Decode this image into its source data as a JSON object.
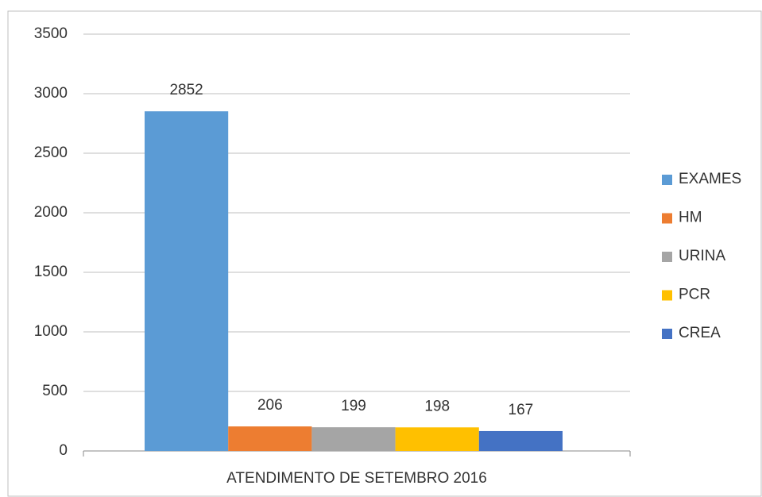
{
  "chart_data": {
    "type": "bar",
    "categories": [
      "ATENDIMENTO DE SETEMBRO 2016"
    ],
    "series": [
      {
        "name": "EXAMES",
        "color": "#5b9bd5",
        "values": [
          2852
        ]
      },
      {
        "name": "HM",
        "color": "#ed7d31",
        "values": [
          206
        ]
      },
      {
        "name": "URINA",
        "color": "#a5a5a5",
        "values": [
          199
        ]
      },
      {
        "name": "PCR",
        "color": "#ffc000",
        "values": [
          198
        ]
      },
      {
        "name": "CREA",
        "color": "#4472c4",
        "values": [
          167
        ]
      }
    ],
    "ylim": [
      0,
      3500
    ],
    "yticks": [
      0,
      500,
      1000,
      1500,
      2000,
      2500,
      3000,
      3500
    ],
    "grid": true,
    "legend": "right"
  }
}
